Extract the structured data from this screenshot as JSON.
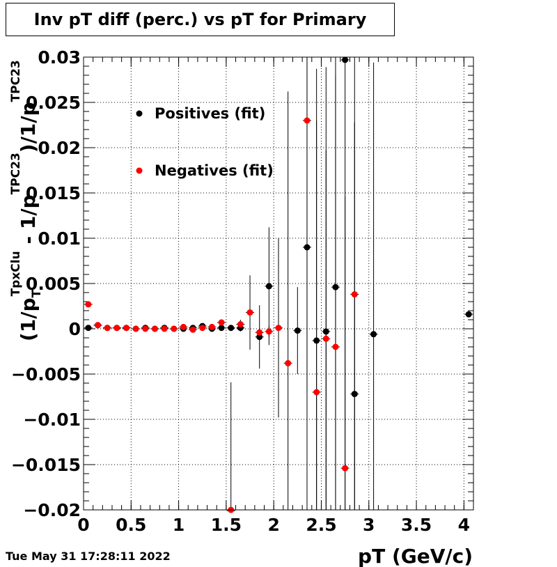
{
  "title": "Inv pT diff (perc.) vs pT for Primary",
  "timestamp": "Tue May 31 17:28:11 2022",
  "chart_data": {
    "type": "scatter",
    "title": "Inv pT diff (perc.) vs pT for Primary",
    "xlabel": "pT (GeV/c)",
    "ylabel_parts": {
      "open": "(1/p",
      "sub1": "T",
      "sup1": "TpxClu",
      "mid": " - 1/p",
      "sup2": "TPC23",
      "mid2": ")/1/p",
      "sup3": "TPC23"
    },
    "xlim": [
      0,
      4.1
    ],
    "ylim": [
      -0.02,
      0.03
    ],
    "xticks": [
      {
        "v": 0,
        "label": "0"
      },
      {
        "v": 0.5,
        "label": "0.5"
      },
      {
        "v": 1,
        "label": "1"
      },
      {
        "v": 1.5,
        "label": "1.5"
      },
      {
        "v": 2,
        "label": "2"
      },
      {
        "v": 2.5,
        "label": "2.5"
      },
      {
        "v": 3,
        "label": "3"
      },
      {
        "v": 3.5,
        "label": "3.5"
      },
      {
        "v": 4,
        "label": "4"
      }
    ],
    "yticks": [
      {
        "v": -0.02,
        "label": "−0.02"
      },
      {
        "v": -0.015,
        "label": "−0.015"
      },
      {
        "v": -0.01,
        "label": "−0.01"
      },
      {
        "v": -0.005,
        "label": "−0.005"
      },
      {
        "v": 0,
        "label": "0"
      },
      {
        "v": 0.005,
        "label": "0.005"
      },
      {
        "v": 0.01,
        "label": "0.01"
      },
      {
        "v": 0.015,
        "label": "0.015"
      },
      {
        "v": 0.02,
        "label": "0.02"
      },
      {
        "v": 0.025,
        "label": "0.025"
      },
      {
        "v": 0.03,
        "label": "0.03"
      }
    ],
    "grid": true,
    "legend_position": "top-left",
    "series": [
      {
        "name": "Positives (fit)",
        "color": "#000000",
        "points": [
          {
            "x": 0.05,
            "y": 0.0001,
            "err": 0.0001
          },
          {
            "x": 0.15,
            "y": 0.0004,
            "err": 0.0001
          },
          {
            "x": 0.25,
            "y": 0.0001,
            "err": 0.0001
          },
          {
            "x": 0.35,
            "y": 0.0001,
            "err": 0.0001
          },
          {
            "x": 0.45,
            "y": 0.0001,
            "err": 0.0001
          },
          {
            "x": 0.55,
            "y": 0.0,
            "err": 0.0001
          },
          {
            "x": 0.65,
            "y": 0.0001,
            "err": 0.0001
          },
          {
            "x": 0.75,
            "y": 0.0,
            "err": 0.0001
          },
          {
            "x": 0.85,
            "y": 0.0001,
            "err": 0.0001
          },
          {
            "x": 0.95,
            "y": 0.0,
            "err": 0.0001
          },
          {
            "x": 1.05,
            "y": 0.0,
            "err": 0.0001
          },
          {
            "x": 1.15,
            "y": 0.0001,
            "err": 0.0002
          },
          {
            "x": 1.25,
            "y": 0.0003,
            "err": 0.0002
          },
          {
            "x": 1.35,
            "y": 0.0,
            "err": 0.0002
          },
          {
            "x": 1.45,
            "y": 0.0001,
            "err": 0.0003
          },
          {
            "x": 1.55,
            "y": 0.0001,
            "err": 0.0003
          },
          {
            "x": 1.65,
            "y": 0.0001,
            "err": 0.0004
          },
          {
            "x": 1.85,
            "y": -0.0009,
            "err": 0.0035
          },
          {
            "x": 1.95,
            "y": 0.0047,
            "err": 0.0065
          },
          {
            "x": 2.25,
            "y": -0.0002,
            "err": 0.0048
          },
          {
            "x": 2.35,
            "y": 0.009,
            "err": 0.03
          },
          {
            "x": 2.45,
            "y": -0.0013,
            "err": 0.03
          },
          {
            "x": 2.55,
            "y": -0.0003,
            "err": 0.02
          },
          {
            "x": 2.65,
            "y": 0.0046,
            "err": 0.03
          },
          {
            "x": 2.75,
            "y": 0.0297,
            "err": 0.06
          },
          {
            "x": 2.85,
            "y": -0.0072,
            "err": 0.03
          },
          {
            "x": 3.05,
            "y": -0.0006,
            "err": 0.03
          },
          {
            "x": 4.05,
            "y": 0.0016,
            "err": 0.0003
          }
        ]
      },
      {
        "name": "Negatives (fit)",
        "color": "#ff0000",
        "points": [
          {
            "x": 0.05,
            "y": 0.0027,
            "err": 0.0001
          },
          {
            "x": 0.15,
            "y": 0.0004,
            "err": 0.0001
          },
          {
            "x": 0.25,
            "y": 0.0001,
            "err": 0.0001
          },
          {
            "x": 0.35,
            "y": 0.0001,
            "err": 0.0001
          },
          {
            "x": 0.45,
            "y": 0.0001,
            "err": 0.0001
          },
          {
            "x": 0.55,
            "y": 0.0,
            "err": 0.0001
          },
          {
            "x": 0.65,
            "y": 0.0,
            "err": 0.0001
          },
          {
            "x": 0.75,
            "y": 0.0,
            "err": 0.0001
          },
          {
            "x": 0.85,
            "y": 0.0,
            "err": 0.0001
          },
          {
            "x": 0.95,
            "y": 0.0,
            "err": 0.0001
          },
          {
            "x": 1.05,
            "y": 0.0002,
            "err": 0.0001
          },
          {
            "x": 1.15,
            "y": -0.0001,
            "err": 0.0002
          },
          {
            "x": 1.25,
            "y": 0.0001,
            "err": 0.0002
          },
          {
            "x": 1.35,
            "y": 0.0002,
            "err": 0.0002
          },
          {
            "x": 1.45,
            "y": 0.0007,
            "err": 0.0003
          },
          {
            "x": 1.55,
            "y": -0.0201,
            "err": 0.0142
          },
          {
            "x": 1.65,
            "y": 0.0005,
            "err": 0.0005
          },
          {
            "x": 1.75,
            "y": 0.0018,
            "err": 0.0041
          },
          {
            "x": 1.85,
            "y": -0.0004,
            "err": 0.0005
          },
          {
            "x": 1.95,
            "y": -0.0003,
            "err": 0.0006
          },
          {
            "x": 2.05,
            "y": 0.0001,
            "err": 0.0099
          },
          {
            "x": 2.15,
            "y": -0.0038,
            "err": 0.03
          },
          {
            "x": 2.35,
            "y": 0.023,
            "err": 0.03
          },
          {
            "x": 2.45,
            "y": -0.007,
            "err": 0.03
          },
          {
            "x": 2.55,
            "y": -0.0011,
            "err": 0.03
          },
          {
            "x": 2.65,
            "y": -0.002,
            "err": 0.03
          },
          {
            "x": 2.75,
            "y": -0.0154,
            "err": 0.03
          },
          {
            "x": 2.85,
            "y": 0.0038,
            "err": 0.03
          }
        ]
      }
    ]
  }
}
